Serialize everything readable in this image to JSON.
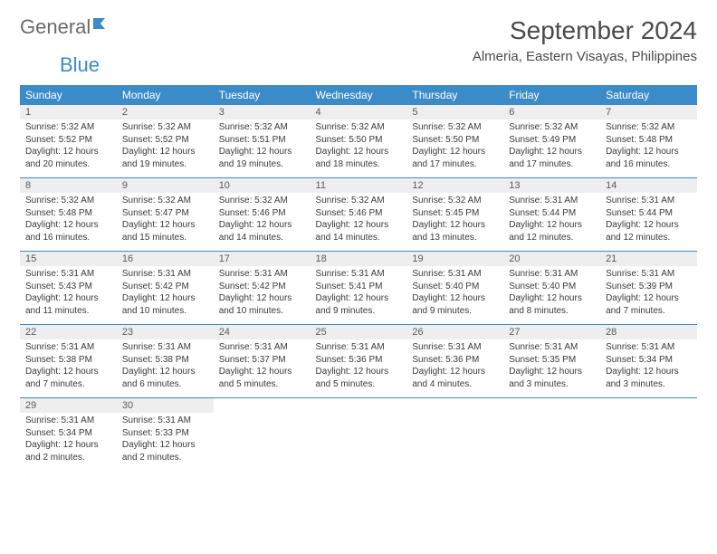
{
  "brand": {
    "name_gray": "General",
    "name_blue": "Blue"
  },
  "title": {
    "month": "September 2024",
    "location": "Almeria, Eastern Visayas, Philippines"
  },
  "colors": {
    "header_bg": "#3b8bc9",
    "header_text": "#ffffff",
    "daynum_bg": "#eeeeee",
    "text": "#3a3a3a",
    "divider": "#3b8bc9"
  },
  "typography": {
    "month_fontsize": 28,
    "location_fontsize": 15,
    "weekday_fontsize": 12,
    "daynum_fontsize": 11,
    "cell_fontsize": 10
  },
  "weekdays": [
    "Sunday",
    "Monday",
    "Tuesday",
    "Wednesday",
    "Thursday",
    "Friday",
    "Saturday"
  ],
  "weeks": [
    [
      {
        "day": "1",
        "sunrise": "Sunrise: 5:32 AM",
        "sunset": "Sunset: 5:52 PM",
        "daylight": "Daylight: 12 hours and 20 minutes."
      },
      {
        "day": "2",
        "sunrise": "Sunrise: 5:32 AM",
        "sunset": "Sunset: 5:52 PM",
        "daylight": "Daylight: 12 hours and 19 minutes."
      },
      {
        "day": "3",
        "sunrise": "Sunrise: 5:32 AM",
        "sunset": "Sunset: 5:51 PM",
        "daylight": "Daylight: 12 hours and 19 minutes."
      },
      {
        "day": "4",
        "sunrise": "Sunrise: 5:32 AM",
        "sunset": "Sunset: 5:50 PM",
        "daylight": "Daylight: 12 hours and 18 minutes."
      },
      {
        "day": "5",
        "sunrise": "Sunrise: 5:32 AM",
        "sunset": "Sunset: 5:50 PM",
        "daylight": "Daylight: 12 hours and 17 minutes."
      },
      {
        "day": "6",
        "sunrise": "Sunrise: 5:32 AM",
        "sunset": "Sunset: 5:49 PM",
        "daylight": "Daylight: 12 hours and 17 minutes."
      },
      {
        "day": "7",
        "sunrise": "Sunrise: 5:32 AM",
        "sunset": "Sunset: 5:48 PM",
        "daylight": "Daylight: 12 hours and 16 minutes."
      }
    ],
    [
      {
        "day": "8",
        "sunrise": "Sunrise: 5:32 AM",
        "sunset": "Sunset: 5:48 PM",
        "daylight": "Daylight: 12 hours and 16 minutes."
      },
      {
        "day": "9",
        "sunrise": "Sunrise: 5:32 AM",
        "sunset": "Sunset: 5:47 PM",
        "daylight": "Daylight: 12 hours and 15 minutes."
      },
      {
        "day": "10",
        "sunrise": "Sunrise: 5:32 AM",
        "sunset": "Sunset: 5:46 PM",
        "daylight": "Daylight: 12 hours and 14 minutes."
      },
      {
        "day": "11",
        "sunrise": "Sunrise: 5:32 AM",
        "sunset": "Sunset: 5:46 PM",
        "daylight": "Daylight: 12 hours and 14 minutes."
      },
      {
        "day": "12",
        "sunrise": "Sunrise: 5:32 AM",
        "sunset": "Sunset: 5:45 PM",
        "daylight": "Daylight: 12 hours and 13 minutes."
      },
      {
        "day": "13",
        "sunrise": "Sunrise: 5:31 AM",
        "sunset": "Sunset: 5:44 PM",
        "daylight": "Daylight: 12 hours and 12 minutes."
      },
      {
        "day": "14",
        "sunrise": "Sunrise: 5:31 AM",
        "sunset": "Sunset: 5:44 PM",
        "daylight": "Daylight: 12 hours and 12 minutes."
      }
    ],
    [
      {
        "day": "15",
        "sunrise": "Sunrise: 5:31 AM",
        "sunset": "Sunset: 5:43 PM",
        "daylight": "Daylight: 12 hours and 11 minutes."
      },
      {
        "day": "16",
        "sunrise": "Sunrise: 5:31 AM",
        "sunset": "Sunset: 5:42 PM",
        "daylight": "Daylight: 12 hours and 10 minutes."
      },
      {
        "day": "17",
        "sunrise": "Sunrise: 5:31 AM",
        "sunset": "Sunset: 5:42 PM",
        "daylight": "Daylight: 12 hours and 10 minutes."
      },
      {
        "day": "18",
        "sunrise": "Sunrise: 5:31 AM",
        "sunset": "Sunset: 5:41 PM",
        "daylight": "Daylight: 12 hours and 9 minutes."
      },
      {
        "day": "19",
        "sunrise": "Sunrise: 5:31 AM",
        "sunset": "Sunset: 5:40 PM",
        "daylight": "Daylight: 12 hours and 9 minutes."
      },
      {
        "day": "20",
        "sunrise": "Sunrise: 5:31 AM",
        "sunset": "Sunset: 5:40 PM",
        "daylight": "Daylight: 12 hours and 8 minutes."
      },
      {
        "day": "21",
        "sunrise": "Sunrise: 5:31 AM",
        "sunset": "Sunset: 5:39 PM",
        "daylight": "Daylight: 12 hours and 7 minutes."
      }
    ],
    [
      {
        "day": "22",
        "sunrise": "Sunrise: 5:31 AM",
        "sunset": "Sunset: 5:38 PM",
        "daylight": "Daylight: 12 hours and 7 minutes."
      },
      {
        "day": "23",
        "sunrise": "Sunrise: 5:31 AM",
        "sunset": "Sunset: 5:38 PM",
        "daylight": "Daylight: 12 hours and 6 minutes."
      },
      {
        "day": "24",
        "sunrise": "Sunrise: 5:31 AM",
        "sunset": "Sunset: 5:37 PM",
        "daylight": "Daylight: 12 hours and 5 minutes."
      },
      {
        "day": "25",
        "sunrise": "Sunrise: 5:31 AM",
        "sunset": "Sunset: 5:36 PM",
        "daylight": "Daylight: 12 hours and 5 minutes."
      },
      {
        "day": "26",
        "sunrise": "Sunrise: 5:31 AM",
        "sunset": "Sunset: 5:36 PM",
        "daylight": "Daylight: 12 hours and 4 minutes."
      },
      {
        "day": "27",
        "sunrise": "Sunrise: 5:31 AM",
        "sunset": "Sunset: 5:35 PM",
        "daylight": "Daylight: 12 hours and 3 minutes."
      },
      {
        "day": "28",
        "sunrise": "Sunrise: 5:31 AM",
        "sunset": "Sunset: 5:34 PM",
        "daylight": "Daylight: 12 hours and 3 minutes."
      }
    ],
    [
      {
        "day": "29",
        "sunrise": "Sunrise: 5:31 AM",
        "sunset": "Sunset: 5:34 PM",
        "daylight": "Daylight: 12 hours and 2 minutes."
      },
      {
        "day": "30",
        "sunrise": "Sunrise: 5:31 AM",
        "sunset": "Sunset: 5:33 PM",
        "daylight": "Daylight: 12 hours and 2 minutes."
      },
      null,
      null,
      null,
      null,
      null
    ]
  ]
}
